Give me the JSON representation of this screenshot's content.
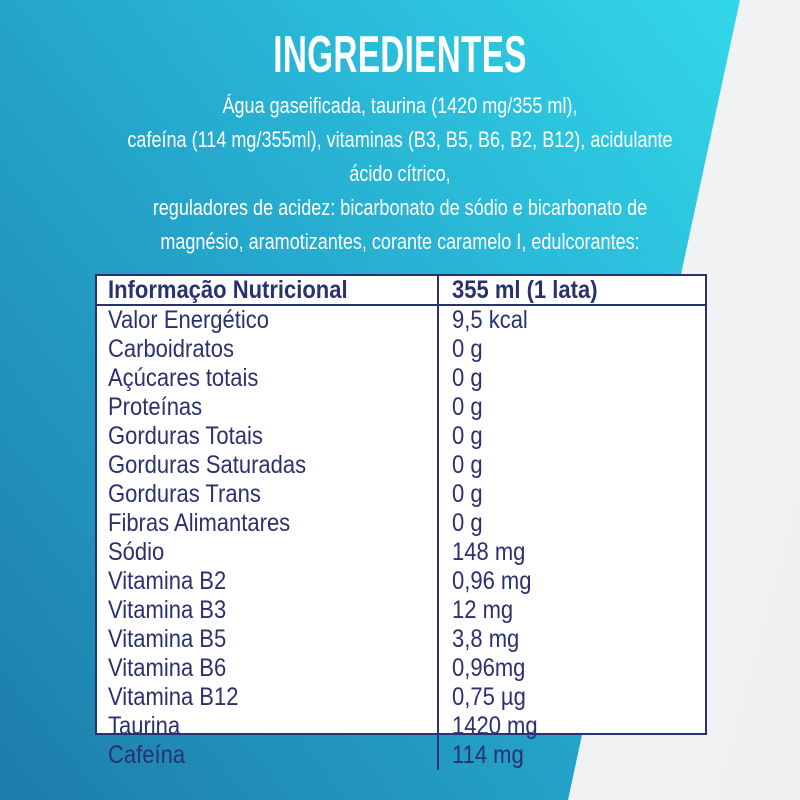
{
  "title": "INGREDIENTES",
  "ingredients": {
    "lines": [
      "Água gaseificada, taurina (1420 mg/355 ml),",
      "cafeína (114 mg/355ml), vitaminas (B3, B5, B6, B2, B12), acidulante",
      "ácido cítrico,",
      "reguladores de acidez: bicarbonato de sódio e bicarbonato de",
      "magnésio, aramotizantes, corante caramelo I, edulcorantes:"
    ]
  },
  "table": {
    "header": {
      "label": "Informação Nutricional",
      "serving": "355 ml (1 lata)"
    },
    "rows": [
      {
        "label": "Valor Energético",
        "value": "9,5 kcal"
      },
      {
        "label": "Carboidratos",
        "value": "0 g"
      },
      {
        "label": "Açúcares totais",
        "value": "0 g"
      },
      {
        "label": "Proteínas",
        "value": "0 g"
      },
      {
        "label": "Gorduras Totais",
        "value": "0 g"
      },
      {
        "label": "Gorduras Saturadas",
        "value": "0 g"
      },
      {
        "label": "Gorduras Trans",
        "value": "0 g"
      },
      {
        "label": "Fibras Alimantares",
        "value": "0 g"
      },
      {
        "label": "Sódio",
        "value": "148 mg"
      },
      {
        "label": "Vitamina B2",
        "value": "0,96 mg"
      },
      {
        "label": "Vitamina B3",
        "value": "12 mg"
      },
      {
        "label": "Vitamina B5",
        "value": "3,8 mg"
      },
      {
        "label": "Vitamina B6",
        "value": "0,96mg"
      },
      {
        "label": "Vitamina B12",
        "value": "0,75 µg"
      },
      {
        "label": "Taurina",
        "value": "1420 mg"
      },
      {
        "label": "Cafeína",
        "value": "114 mg"
      }
    ]
  },
  "colors": {
    "navy_text": "#2a316f",
    "cyan_dark": "#1d7caa",
    "cyan_mid": "#25a8cd",
    "cyan_bright": "#33dbec",
    "panel_white": "#ffffff",
    "wedge_white": "#f2f3f4"
  }
}
